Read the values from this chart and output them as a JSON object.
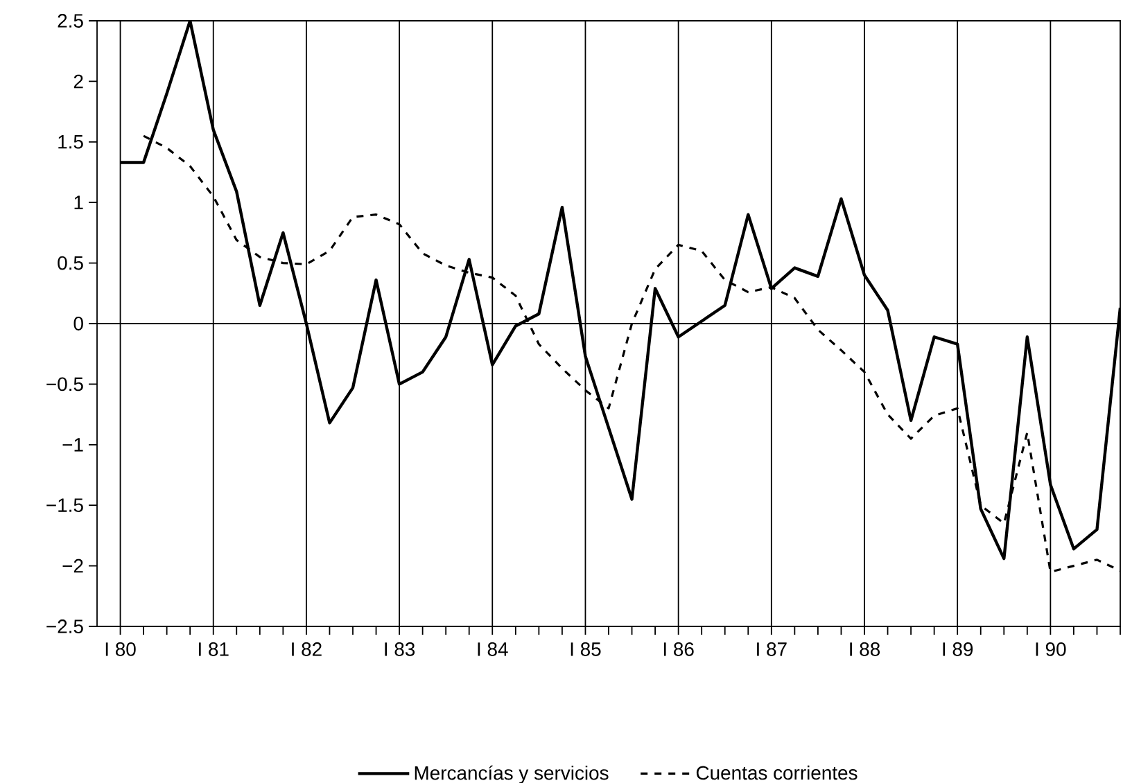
{
  "chart_data": {
    "type": "line",
    "categories": [
      "I 80",
      null,
      null,
      null,
      "I 81",
      null,
      null,
      null,
      "I 82",
      null,
      null,
      null,
      "I 83",
      null,
      null,
      null,
      "I 84",
      null,
      null,
      null,
      "I 85",
      null,
      null,
      null,
      "I 86",
      null,
      null,
      null,
      "I 87",
      null,
      null,
      null,
      "I 88",
      null,
      null,
      null,
      "I 89",
      null,
      null,
      null,
      "I 90",
      null,
      null,
      null
    ],
    "series": [
      {
        "name": "Mercancías y servicios",
        "color": "#000000",
        "line_style": "solid",
        "values": [
          1.33,
          1.33,
          1.9,
          2.5,
          1.6,
          1.09,
          0.15,
          0.75,
          0,
          -0.82,
          -0.53,
          0.36,
          -0.5,
          -0.4,
          -0.11,
          0.53,
          -0.34,
          -0.02,
          0.08,
          0.96,
          -0.27,
          -0.86,
          -1.45,
          0.29,
          -0.11,
          0.02,
          0.15,
          0.9,
          0.29,
          0.46,
          0.39,
          1.03,
          0.4,
          0.11,
          -0.8,
          -0.11,
          -0.17,
          -1.53,
          -1.94,
          -0.11,
          -1.33,
          -1.86,
          -1.7,
          0.13
        ]
      },
      {
        "name": "Cuentas corrientes",
        "color": "#000000",
        "line_style": "dashed",
        "values": [
          null,
          1.55,
          1.45,
          1.3,
          1.05,
          0.69,
          0.55,
          0.5,
          0.49,
          0.6,
          0.88,
          0.9,
          0.82,
          0.58,
          0.48,
          0.42,
          0.38,
          0.23,
          -0.17,
          -0.37,
          -0.55,
          -0.7,
          0,
          0.45,
          0.65,
          0.6,
          0.36,
          0.26,
          0.3,
          0.21,
          -0.05,
          -0.22,
          -0.4,
          -0.75,
          -0.95,
          -0.76,
          -0.7,
          -1.5,
          -1.65,
          -0.9,
          -2.05,
          -2,
          -1.95,
          -2.04
        ]
      }
    ],
    "ylim": [
      -2.5,
      2.5
    ],
    "yticks": [
      2.5,
      2,
      1.5,
      1,
      0.5,
      0,
      {
        "value": -0.5,
        "label": "−0.5"
      },
      {
        "value": -1,
        "label": "−1"
      },
      {
        "value": -1.5,
        "label": "−1.5"
      },
      {
        "value": -2,
        "label": "−2"
      },
      {
        "value": -2.5,
        "label": "−2.5"
      }
    ],
    "ref_lines": [
      {
        "axis": "y",
        "value": 0,
        "color": "#000000"
      }
    ],
    "grid": "x",
    "legend": "bottom",
    "marker": "none"
  }
}
